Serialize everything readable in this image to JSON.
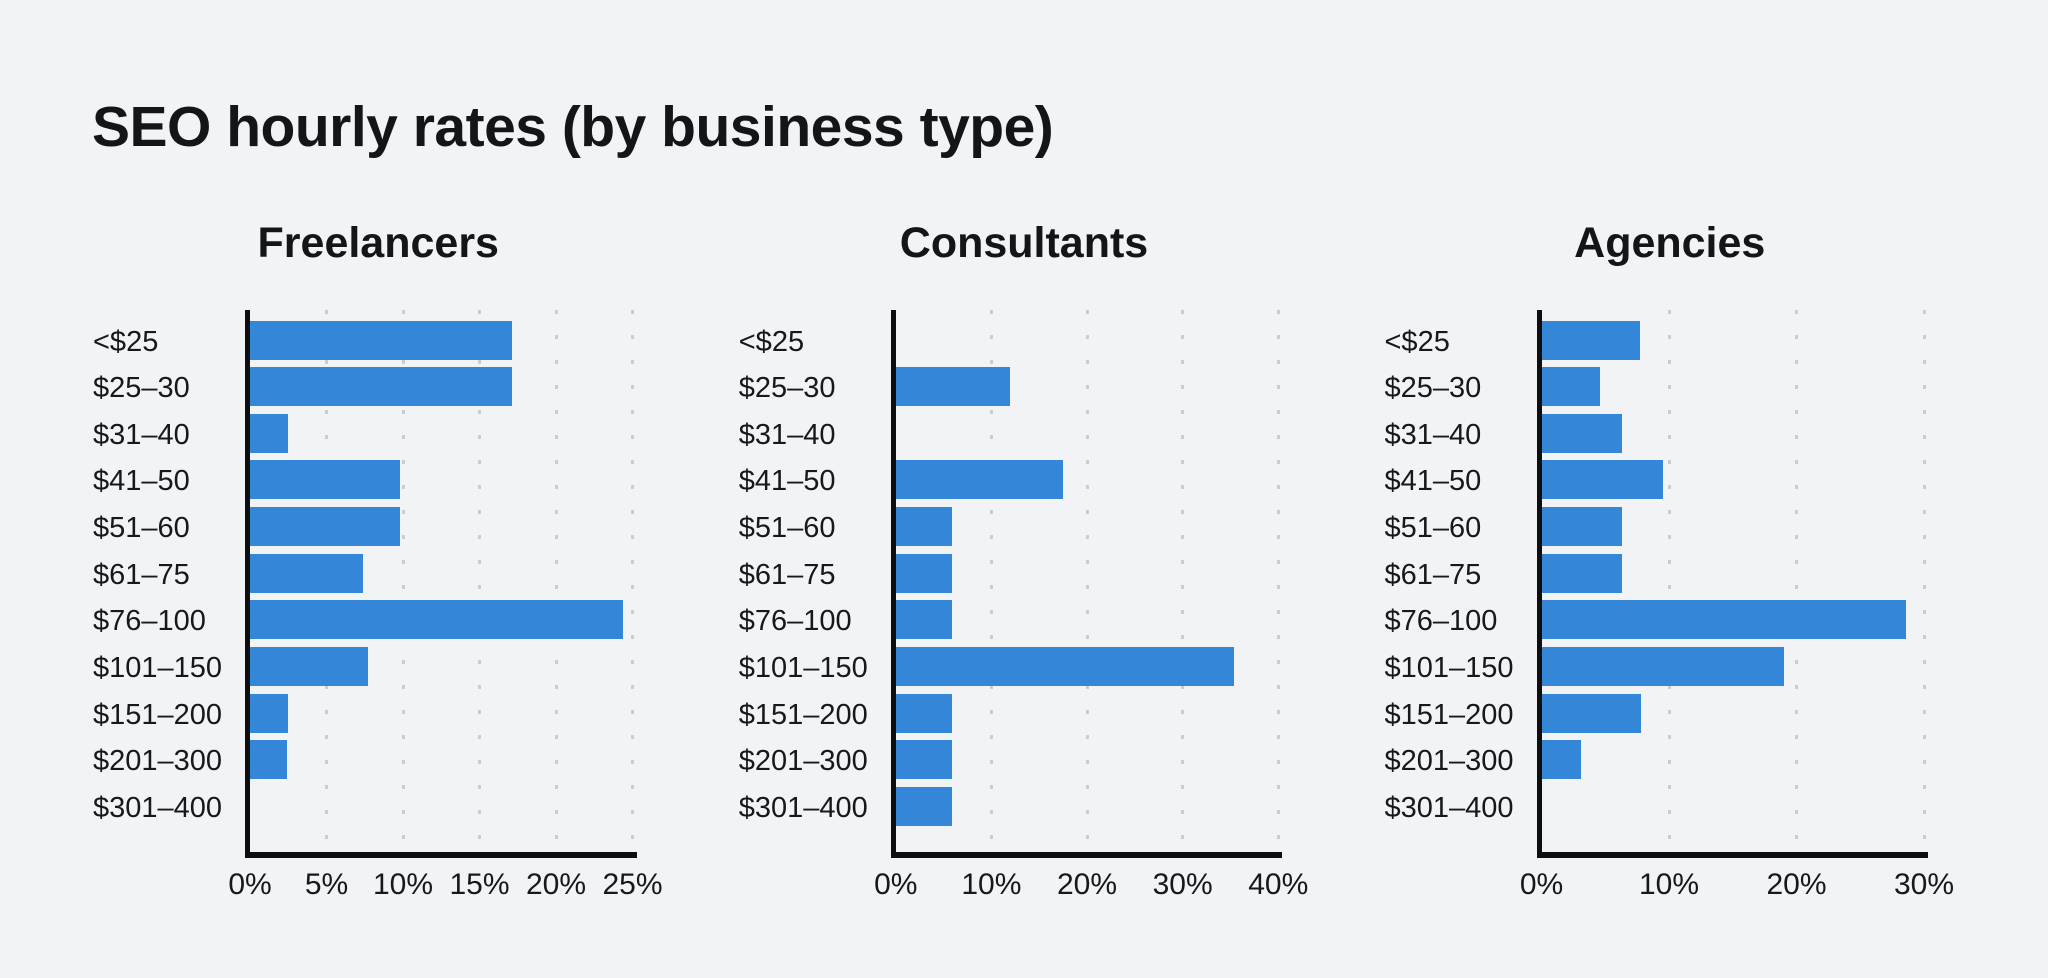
{
  "page": {
    "title": "SEO hourly rates (by business type)",
    "background_color": "#f1f3f5",
    "text_color": "#17181b"
  },
  "colors": {
    "bar": "#3487d8",
    "axis": "#0d0e10",
    "grid_dot": "#c9ccd1",
    "title_text": "#131519"
  },
  "chart_data": [
    {
      "type": "bar",
      "orientation": "horizontal",
      "title": "Freelancers",
      "categories": [
        "<$25",
        "$25–30",
        "$31–40",
        "$41–50",
        "$51–60",
        "$61–75",
        "$76–100",
        "$101–150",
        "$151–200",
        "$201–300",
        "$301–400"
      ],
      "values": [
        17.1,
        17.1,
        2.5,
        9.8,
        9.8,
        7.4,
        24.4,
        7.7,
        2.5,
        2.4,
        0
      ],
      "unit": "%",
      "xlim": [
        0,
        25
      ],
      "xticks": [
        0,
        5,
        10,
        15,
        20,
        25
      ],
      "xtick_labels": [
        "0%",
        "5%",
        "10%",
        "15%",
        "20%",
        "25%"
      ],
      "grid": "dotted-vertical",
      "legend": "none"
    },
    {
      "type": "bar",
      "orientation": "horizontal",
      "title": "Consultants",
      "categories": [
        "<$25",
        "$25–30",
        "$31–40",
        "$41–50",
        "$51–60",
        "$61–75",
        "$76–100",
        "$101–150",
        "$151–200",
        "$201–300",
        "$301–400"
      ],
      "values": [
        0,
        11.9,
        0,
        17.5,
        5.9,
        5.9,
        5.9,
        35.4,
        5.9,
        5.9,
        5.9
      ],
      "unit": "%",
      "xlim": [
        0,
        40
      ],
      "xticks": [
        0,
        10,
        20,
        30,
        40
      ],
      "xtick_labels": [
        "0%",
        "10%",
        "20%",
        "30%",
        "40%"
      ],
      "grid": "dotted-vertical",
      "legend": "none"
    },
    {
      "type": "bar",
      "orientation": "horizontal",
      "title": "Agencies",
      "categories": [
        "<$25",
        "$25–30",
        "$31–40",
        "$41–50",
        "$51–60",
        "$61–75",
        "$76–100",
        "$101–150",
        "$151–200",
        "$201–300",
        "$301–400"
      ],
      "values": [
        7.7,
        4.6,
        6.3,
        9.5,
        6.3,
        6.3,
        28.6,
        19.0,
        7.8,
        3.1,
        0
      ],
      "unit": "%",
      "xlim": [
        0,
        30
      ],
      "xticks": [
        0,
        10,
        20,
        30
      ],
      "xtick_labels": [
        "0%",
        "10%",
        "20%",
        "30%"
      ],
      "grid": "dotted-vertical",
      "legend": "none"
    }
  ]
}
